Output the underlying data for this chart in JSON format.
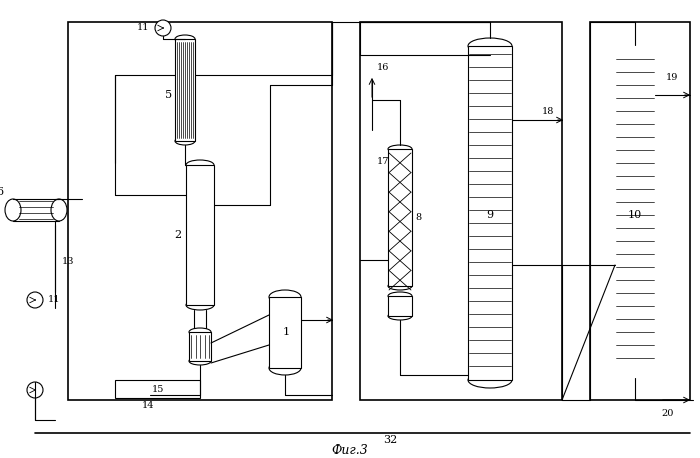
{
  "title": "Фиг.3",
  "bg_color": "#ffffff",
  "line_color": "#000000",
  "fig_width": 7.0,
  "fig_height": 4.58,
  "dpi": 100
}
